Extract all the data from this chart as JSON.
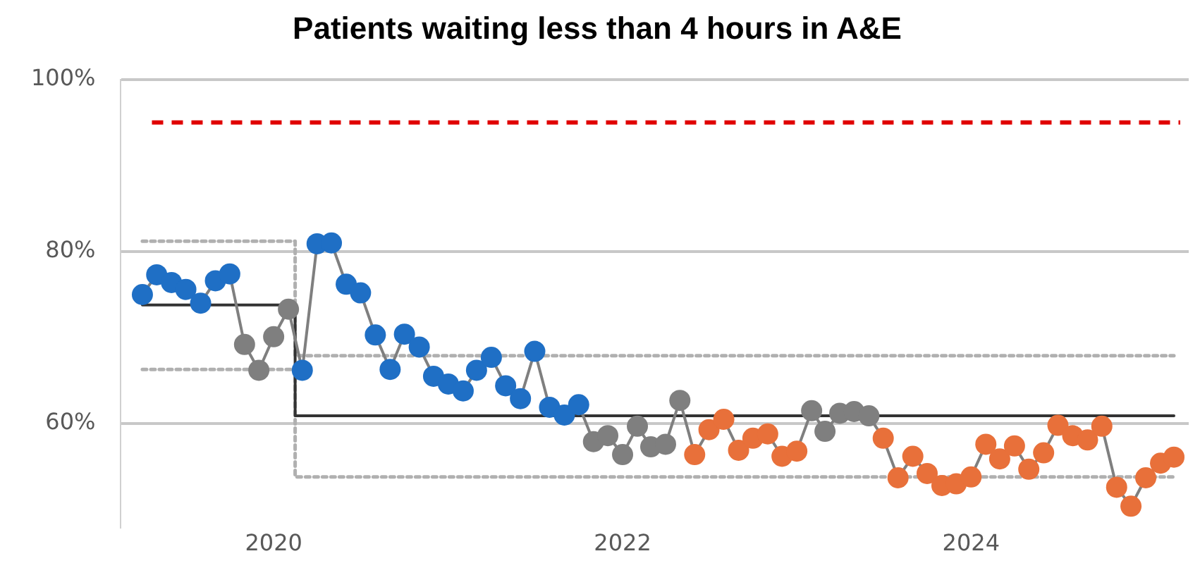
{
  "chart_data": {
    "type": "line",
    "title": "Patients waiting less than 4 hours in A&E",
    "x": [
      "2019-04",
      "2019-05",
      "2019-06",
      "2019-07",
      "2019-08",
      "2019-09",
      "2019-10",
      "2019-11",
      "2019-12",
      "2020-01",
      "2020-02",
      "2020-03",
      "2020-04",
      "2020-05",
      "2020-06",
      "2020-07",
      "2020-08",
      "2020-09",
      "2020-10",
      "2020-11",
      "2020-12",
      "2021-01",
      "2021-02",
      "2021-03",
      "2021-04",
      "2021-05",
      "2021-06",
      "2021-07",
      "2021-08",
      "2021-09",
      "2021-10",
      "2021-11",
      "2021-12",
      "2022-01",
      "2022-02",
      "2022-03",
      "2022-04",
      "2022-05",
      "2022-06",
      "2022-07",
      "2022-08",
      "2022-09",
      "2022-10",
      "2022-11",
      "2022-12",
      "2023-01",
      "2023-02",
      "2023-03",
      "2023-04",
      "2023-05",
      "2023-06",
      "2023-07",
      "2023-08",
      "2023-09",
      "2023-10",
      "2023-11",
      "2023-12",
      "2024-01",
      "2024-02",
      "2024-03",
      "2024-04",
      "2024-05",
      "2024-06",
      "2024-07",
      "2024-08",
      "2024-09",
      "2024-10",
      "2024-11",
      "2024-12",
      "2025-01",
      "2025-02",
      "2025-03"
    ],
    "series": [
      {
        "type": "line",
        "color": "#7f7f7f",
        "marker": "circle",
        "line_style": "solid",
        "values": [
          75.0,
          77.3,
          76.4,
          75.6,
          74.0,
          76.6,
          77.4,
          69.2,
          66.2,
          70.1,
          73.3,
          66.2,
          80.9,
          81.0,
          76.2,
          75.2,
          70.3,
          66.3,
          70.4,
          68.9,
          65.5,
          64.6,
          63.8,
          66.2,
          67.7,
          64.4,
          62.9,
          68.4,
          61.9,
          61.0,
          62.2,
          57.9,
          58.6,
          56.4,
          59.7,
          57.3,
          57.6,
          62.7,
          56.4,
          59.3,
          60.5,
          56.9,
          58.3,
          58.8,
          56.2,
          56.8,
          61.5,
          59.1,
          61.2,
          61.4,
          60.9,
          58.3,
          53.7,
          56.2,
          54.2,
          52.8,
          53.0,
          53.8,
          57.6,
          55.9,
          57.4,
          54.7,
          56.6,
          59.8,
          58.6,
          58.1,
          59.7,
          52.6,
          50.4,
          53.7,
          55.4,
          56.1
        ],
        "colors": [
          "#1f6fc5",
          "#1f6fc5",
          "#1f6fc5",
          "#1f6fc5",
          "#1f6fc5",
          "#1f6fc5",
          "#1f6fc5",
          "#7f7f7f",
          "#7f7f7f",
          "#7f7f7f",
          "#7f7f7f",
          "#1f6fc5",
          "#1f6fc5",
          "#1f6fc5",
          "#1f6fc5",
          "#1f6fc5",
          "#1f6fc5",
          "#1f6fc5",
          "#1f6fc5",
          "#1f6fc5",
          "#1f6fc5",
          "#1f6fc5",
          "#1f6fc5",
          "#1f6fc5",
          "#1f6fc5",
          "#1f6fc5",
          "#1f6fc5",
          "#1f6fc5",
          "#1f6fc5",
          "#1f6fc5",
          "#1f6fc5",
          "#7f7f7f",
          "#7f7f7f",
          "#7f7f7f",
          "#7f7f7f",
          "#7f7f7f",
          "#7f7f7f",
          "#7f7f7f",
          "#e8703a",
          "#e8703a",
          "#e8703a",
          "#e8703a",
          "#e8703a",
          "#e8703a",
          "#e8703a",
          "#e8703a",
          "#7f7f7f",
          "#7f7f7f",
          "#7f7f7f",
          "#7f7f7f",
          "#7f7f7f",
          "#e8703a",
          "#e8703a",
          "#e8703a",
          "#e8703a",
          "#e8703a",
          "#e8703a",
          "#e8703a",
          "#e8703a",
          "#e8703a",
          "#e8703a",
          "#e8703a",
          "#e8703a",
          "#e8703a",
          "#e8703a",
          "#e8703a",
          "#e8703a",
          "#e8703a",
          "#e8703a",
          "#e8703a",
          "#e8703a",
          "#e8703a"
        ]
      },
      {
        "type": "line",
        "color": "#333333",
        "marker": "none",
        "line_style": "solid",
        "x": [
          "2019-04",
          "2020-02-15",
          "2020-02-15",
          "2025-03"
        ],
        "values": [
          73.8,
          73.8,
          60.9,
          60.9
        ]
      },
      {
        "type": "line",
        "color": "#b0b0b0",
        "marker": "none",
        "line_style": "dotted",
        "x": [
          "2019-04",
          "2020-02-15",
          "2020-02-15",
          "2025-03"
        ],
        "values": [
          81.2,
          81.2,
          67.9,
          67.9
        ]
      },
      {
        "type": "line",
        "color": "#b0b0b0",
        "marker": "none",
        "line_style": "dotted",
        "x": [
          "2019-04",
          "2020-02-15",
          "2020-02-15",
          "2025-03"
        ],
        "values": [
          66.3,
          66.3,
          53.8,
          53.8
        ]
      }
    ],
    "ref_lines": [
      {
        "axis": "y",
        "value": 95,
        "color": "#e00000",
        "line_style": "dashed"
      }
    ],
    "xlim": [
      "2019-02-15",
      "2025-04"
    ],
    "xticks": [
      {
        "value": "2020-01",
        "label": "2020"
      },
      {
        "value": "2022-01",
        "label": "2022"
      },
      {
        "value": "2024-01",
        "label": "2024"
      }
    ],
    "yticks": [
      {
        "value": 60,
        "label": "60%"
      },
      {
        "value": 80,
        "label": "80%"
      },
      {
        "value": 100,
        "label": "100%"
      }
    ],
    "ylim": [
      48,
      100
    ],
    "grid": "y",
    "legend": false
  }
}
